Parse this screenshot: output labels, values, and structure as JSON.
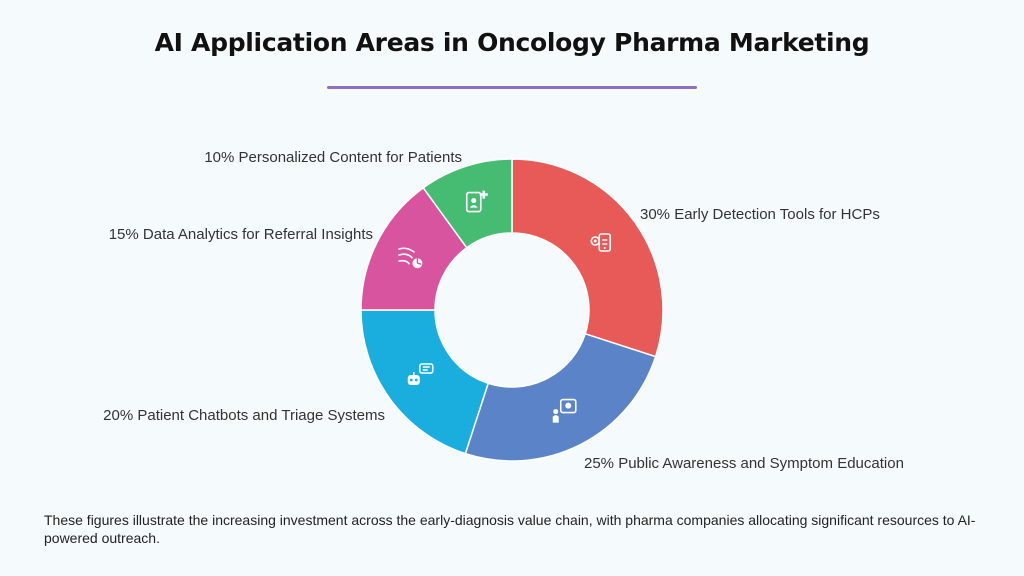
{
  "title": "AI Application Areas in Oncology Pharma Marketing",
  "footnote": "These figures illustrate the increasing investment across the early-diagnosis value chain, with pharma companies allocating significant resources to AI-powered outreach.",
  "colors": {
    "accent_rule": "#8e6fc2",
    "background": "#f5fafc"
  },
  "chart_data": {
    "type": "pie",
    "donut": true,
    "slices": [
      {
        "label": "30% Early Detection Tools for HCPs",
        "value": 30,
        "color": "#e85a57",
        "icon": "scan-phone-icon"
      },
      {
        "label": "25% Public Awareness and Symptom Education",
        "value": 25,
        "color": "#5b83c7",
        "icon": "education-chat-icon"
      },
      {
        "label": "20% Patient Chatbots and Triage Systems",
        "value": 20,
        "color": "#1aaedf",
        "icon": "chatbot-icon"
      },
      {
        "label": "15% Data Analytics for Referral Insights",
        "value": 15,
        "color": "#d8549f",
        "icon": "analytics-icon"
      },
      {
        "label": "10% Personalized Content for Patients",
        "value": 10,
        "color": "#46bb72",
        "icon": "patient-content-icon"
      }
    ]
  }
}
